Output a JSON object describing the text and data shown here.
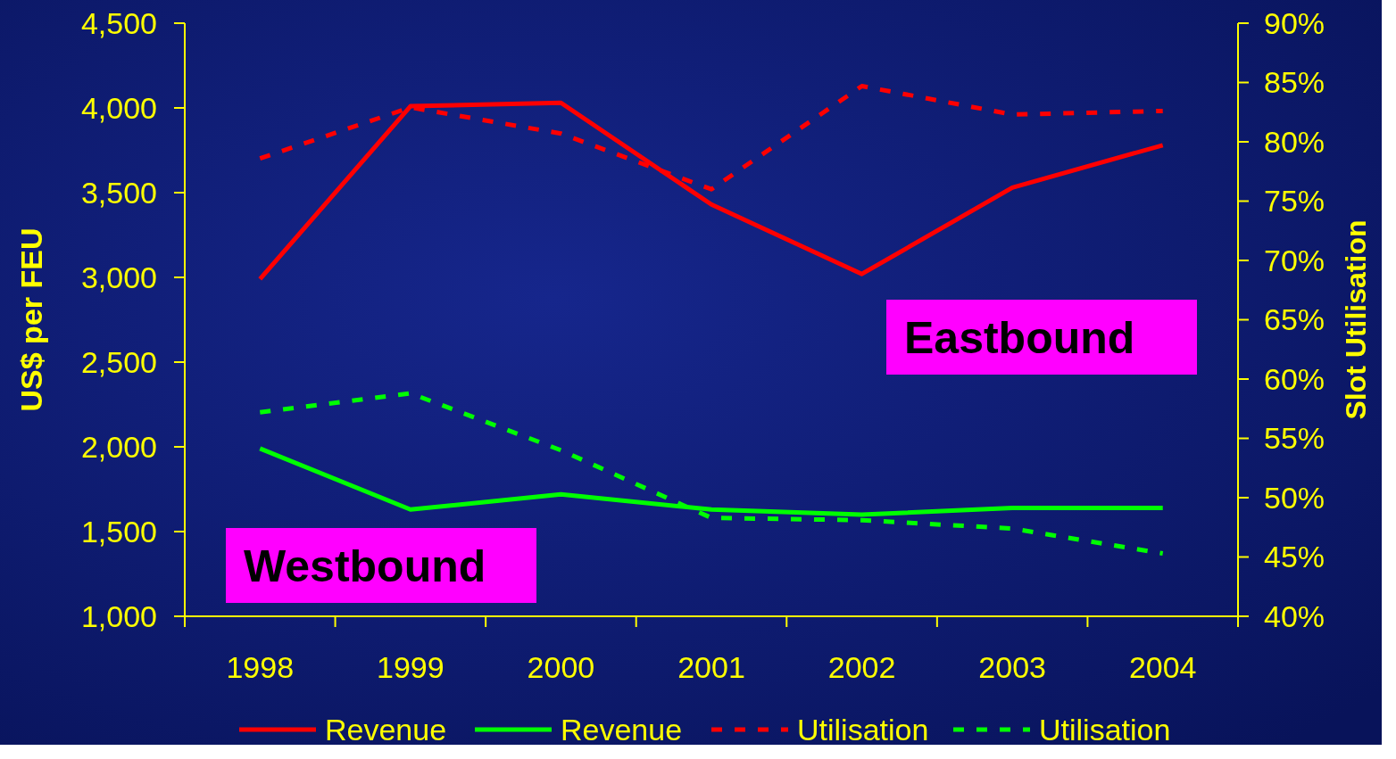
{
  "chart_data": {
    "type": "line",
    "ylabel": "US$ per FEU",
    "y2label": "Slot Utilisation",
    "categories": [
      "1998",
      "1999",
      "2000",
      "2001",
      "2002",
      "2003",
      "2004"
    ],
    "series": [
      {
        "name": "Revenue",
        "color": "#ff0000",
        "values": [
          2990,
          4010,
          4030,
          3430,
          3020,
          3530,
          3780
        ],
        "line_style": "solid"
      },
      {
        "name": "Revenue",
        "color": "#00ff00",
        "values": [
          1990,
          1630,
          1720,
          1630,
          1600,
          1640,
          1640
        ],
        "line_style": "solid"
      },
      {
        "name": "Utilisation",
        "color": "#ff0000",
        "values": [
          78.6,
          82.9,
          80.7,
          76.0,
          84.7,
          82.3,
          82.6
        ],
        "axis": "y2",
        "line_style": "dashed"
      },
      {
        "name": "Utilisation",
        "color": "#00ff00",
        "values": [
          57.2,
          58.8,
          54.0,
          48.3,
          48.1,
          47.4,
          45.3
        ],
        "axis": "y2",
        "line_style": "dashed"
      }
    ],
    "ylim": [
      1000,
      4500
    ],
    "yticks": [
      {
        "value": 1000,
        "label": "1,000"
      },
      {
        "value": 1500,
        "label": "1,500"
      },
      {
        "value": 2000,
        "label": "2,000"
      },
      {
        "value": 2500,
        "label": "2,500"
      },
      {
        "value": 3000,
        "label": "3,000"
      },
      {
        "value": 3500,
        "label": "3,500"
      },
      {
        "value": 4000,
        "label": "4,000"
      },
      {
        "value": 4500,
        "label": "4,500"
      }
    ],
    "y2lim": [
      40,
      90
    ],
    "y2ticks": [
      {
        "value": 40,
        "label": "40%"
      },
      {
        "value": 45,
        "label": "45%"
      },
      {
        "value": 50,
        "label": "50%"
      },
      {
        "value": 55,
        "label": "55%"
      },
      {
        "value": 60,
        "label": "60%"
      },
      {
        "value": 65,
        "label": "65%"
      },
      {
        "value": 70,
        "label": "70%"
      },
      {
        "value": 75,
        "label": "75%"
      },
      {
        "value": 80,
        "label": "80%"
      },
      {
        "value": 85,
        "label": "85%"
      },
      {
        "value": 90,
        "label": "90%"
      }
    ],
    "annotations": [
      "Eastbound",
      "Westbound"
    ],
    "grid": false,
    "legend": "bottom",
    "marker": "none"
  }
}
